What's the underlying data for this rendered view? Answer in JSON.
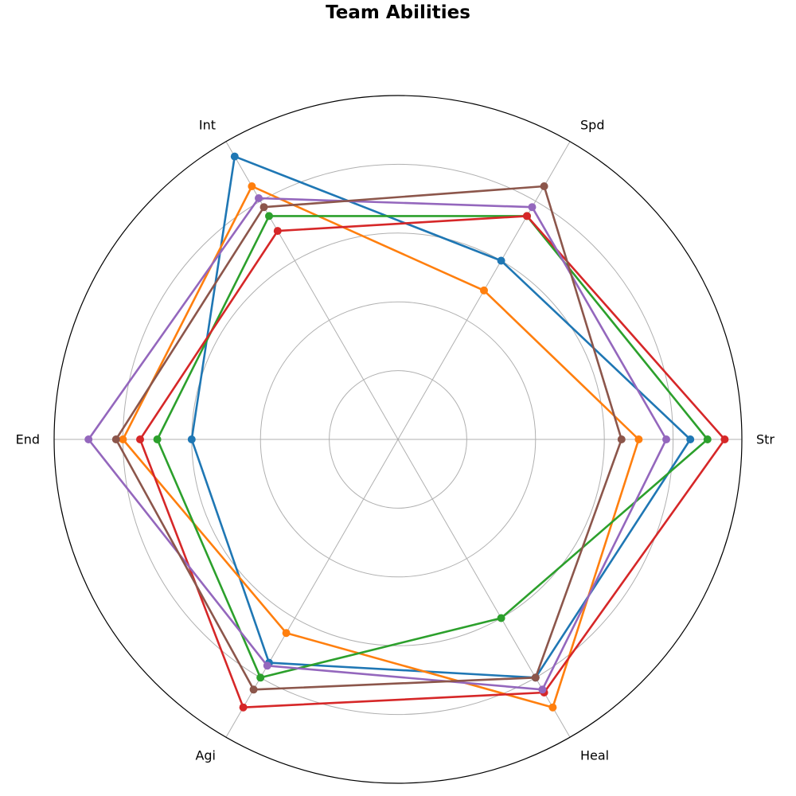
{
  "chart_data": {
    "type": "radar",
    "title": "Team Abilities",
    "axes": [
      "Str",
      "Spd",
      "Int",
      "End",
      "Agi",
      "Heal"
    ],
    "rlim": [
      0,
      100
    ],
    "rings": [
      20,
      40,
      60,
      80
    ],
    "grid": true,
    "legend": "none",
    "series": [
      {
        "color": "#1f77b4",
        "values": [
          85,
          60,
          95,
          60,
          75,
          80
        ]
      },
      {
        "color": "#ff7f0e",
        "values": [
          70,
          50,
          85,
          80,
          65,
          90
        ]
      },
      {
        "color": "#2ca02c",
        "values": [
          90,
          75,
          75,
          70,
          80,
          60
        ]
      },
      {
        "color": "#d62728",
        "values": [
          95,
          75,
          70,
          75,
          90,
          85
        ]
      },
      {
        "color": "#9467bd",
        "values": [
          78,
          78,
          81,
          90,
          76,
          84
        ]
      },
      {
        "color": "#8c564b",
        "values": [
          65,
          85,
          78,
          82,
          84,
          80
        ]
      }
    ]
  }
}
